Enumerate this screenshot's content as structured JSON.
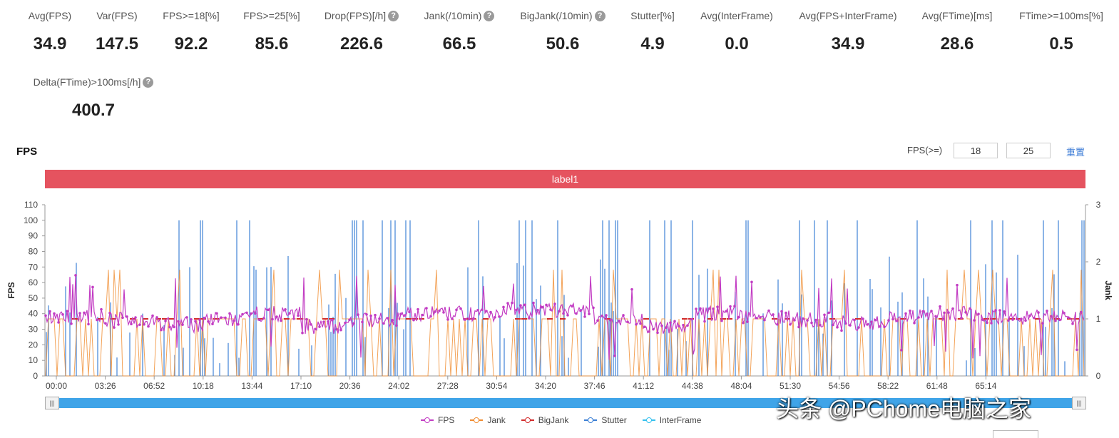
{
  "metrics": [
    {
      "label": "Avg(FPS)",
      "value": "34.9",
      "help": false
    },
    {
      "label": "Var(FPS)",
      "value": "147.5",
      "help": false
    },
    {
      "label": "FPS>=18[%]",
      "value": "92.2",
      "help": false
    },
    {
      "label": "FPS>=25[%]",
      "value": "85.6",
      "help": false
    },
    {
      "label": "Drop(FPS)[/h]",
      "value": "226.6",
      "help": true
    },
    {
      "label": "Jank(/10min)",
      "value": "66.5",
      "help": true
    },
    {
      "label": "BigJank(/10min)",
      "value": "50.6",
      "help": true
    },
    {
      "label": "Stutter[%]",
      "value": "4.9",
      "help": false
    },
    {
      "label": "Avg(InterFrame)",
      "value": "0.0",
      "help": false
    },
    {
      "label": "Avg(FPS+InterFrame)",
      "value": "34.9",
      "help": false
    },
    {
      "label": "Avg(FTime)[ms]",
      "value": "28.6",
      "help": false
    },
    {
      "label": "FTime>=100ms[%]",
      "value": "0.5",
      "help": false
    },
    {
      "label": "Delta(FTime)>100ms[/h]",
      "value": "400.7",
      "help": true
    }
  ],
  "help_glyph": "?",
  "chart_title": "FPS",
  "fps_filter": {
    "label": "FPS(>=)",
    "low": "18",
    "high": "25",
    "reset": "重置"
  },
  "label_bar": "label1",
  "slider_handle_glyph": "|||",
  "watermark": "头条 @PChome电脑之家",
  "chart_data": {
    "type": "line",
    "x_ticks": [
      "00:00",
      "03:26",
      "06:52",
      "10:18",
      "13:44",
      "17:10",
      "20:36",
      "24:02",
      "27:28",
      "30:54",
      "34:20",
      "37:46",
      "41:12",
      "44:38",
      "48:04",
      "51:30",
      "54:56",
      "58:22",
      "61:48",
      "65:14"
    ],
    "y_left": {
      "label": "FPS",
      "range": [
        0,
        110
      ],
      "ticks": [
        "0",
        "10",
        "20",
        "30",
        "40",
        "50",
        "60",
        "70",
        "80",
        "90",
        "100",
        "110"
      ]
    },
    "y_right": {
      "label": "Jank",
      "range": [
        0,
        3
      ],
      "ticks": [
        "0",
        "1",
        "2",
        "3"
      ]
    },
    "legend": [
      {
        "name": "FPS",
        "color": "#c23cc3"
      },
      {
        "name": "Jank",
        "color": "#f08c30"
      },
      {
        "name": "BigJank",
        "color": "#d22b2b"
      },
      {
        "name": "Stutter",
        "color": "#3a7fd5"
      },
      {
        "name": "InterFrame",
        "color": "#33c0ee"
      }
    ],
    "fps_segments": [
      {
        "from": "00:00",
        "to": "03:26",
        "level": 38
      },
      {
        "from": "03:26",
        "to": "06:52",
        "level": 36
      },
      {
        "from": "06:52",
        "to": "10:18",
        "level": 33
      },
      {
        "from": "10:18",
        "to": "13:44",
        "level": 36
      },
      {
        "from": "13:44",
        "to": "17:10",
        "level": 40
      },
      {
        "from": "17:10",
        "to": "20:36",
        "level": 32
      },
      {
        "from": "20:36",
        "to": "24:02",
        "level": 36
      },
      {
        "from": "24:02",
        "to": "27:28",
        "level": 40
      },
      {
        "from": "27:28",
        "to": "30:54",
        "level": 40
      },
      {
        "from": "30:54",
        "to": "34:20",
        "level": 42
      },
      {
        "from": "34:20",
        "to": "37:46",
        "level": 42
      },
      {
        "from": "37:46",
        "to": "41:12",
        "level": 35
      },
      {
        "from": "41:12",
        "to": "44:38",
        "level": 32
      },
      {
        "from": "44:38",
        "to": "48:04",
        "level": 40
      },
      {
        "from": "48:04",
        "to": "51:30",
        "level": 38
      },
      {
        "from": "51:30",
        "to": "54:56",
        "level": 36
      },
      {
        "from": "54:56",
        "to": "58:22",
        "level": 34
      },
      {
        "from": "58:22",
        "to": "61:48",
        "level": 38
      },
      {
        "from": "61:48",
        "to": "65:14",
        "level": 40
      },
      {
        "from": "65:14",
        "to": "end",
        "level": 38
      }
    ]
  }
}
